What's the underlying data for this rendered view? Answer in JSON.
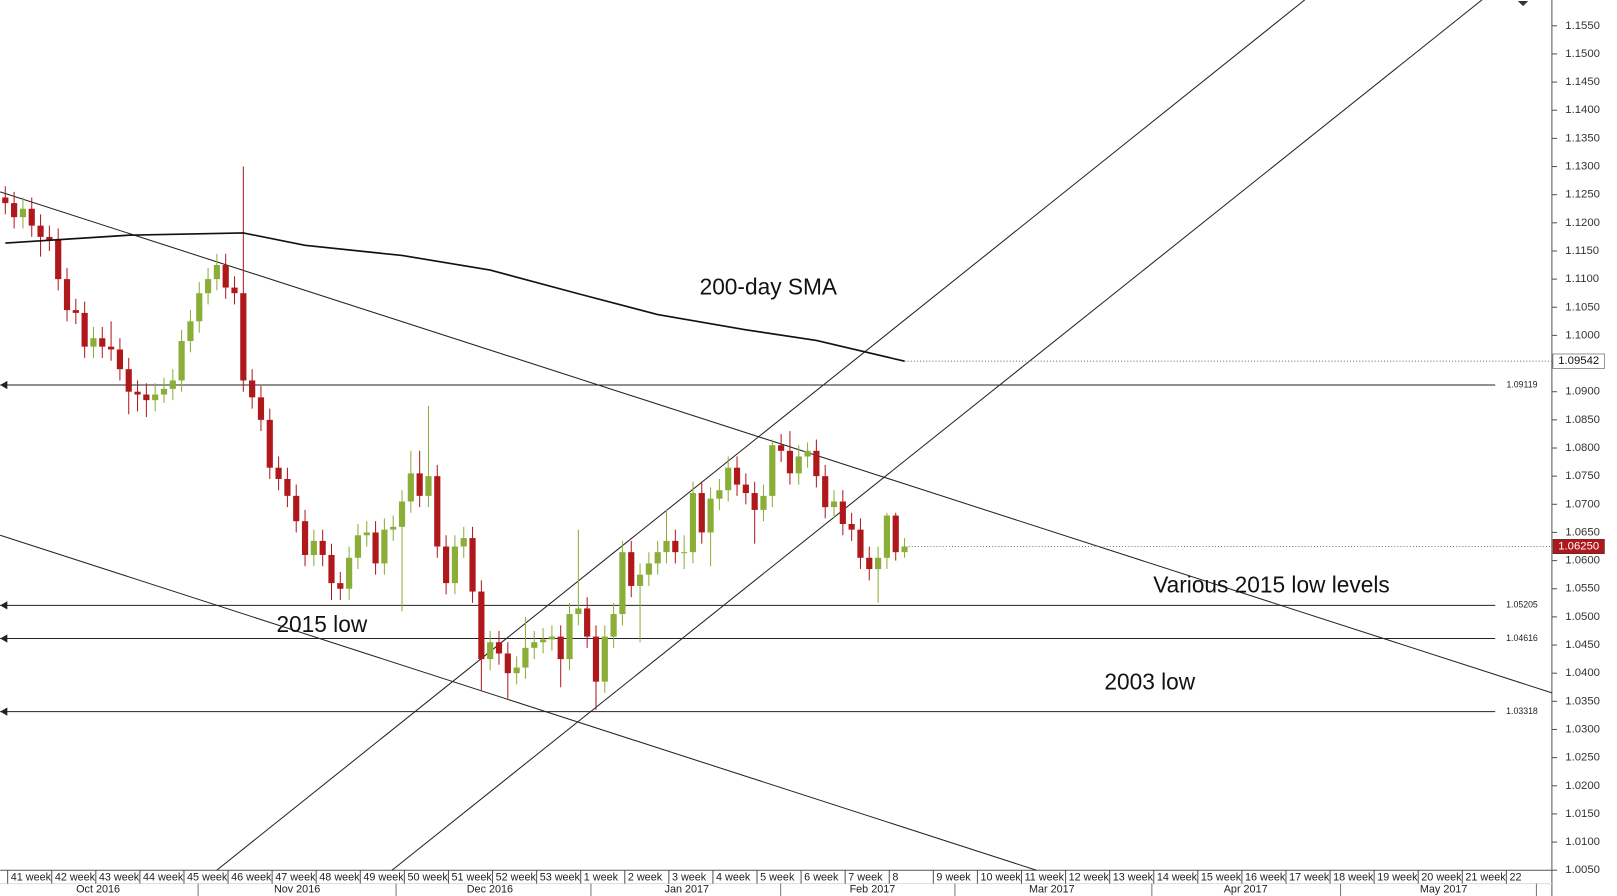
{
  "chart_data": {
    "type": "candlestick",
    "xlim": [
      -0.585,
      175.43
    ],
    "ylim": [
      1.005,
      1.15958
    ],
    "yticks": [
      {
        "value": 1.005,
        "label": "1.0050"
      },
      {
        "value": 1.01,
        "label": "1.0100"
      },
      {
        "value": 1.015,
        "label": "1.0150"
      },
      {
        "value": 1.02,
        "label": "1.0200"
      },
      {
        "value": 1.025,
        "label": "1.0250"
      },
      {
        "value": 1.03,
        "label": "1.0300"
      },
      {
        "value": 1.035,
        "label": "1.0350"
      },
      {
        "value": 1.04,
        "label": "1.0400"
      },
      {
        "value": 1.045,
        "label": "1.0450"
      },
      {
        "value": 1.05,
        "label": "1.0500"
      },
      {
        "value": 1.055,
        "label": "1.0550"
      },
      {
        "value": 1.06,
        "label": "1.0600"
      },
      {
        "value": 1.065,
        "label": "1.0650"
      },
      {
        "value": 1.07,
        "label": "1.0700"
      },
      {
        "value": 1.075,
        "label": "1.0750"
      },
      {
        "value": 1.08,
        "label": "1.0800"
      },
      {
        "value": 1.085,
        "label": "1.0850"
      },
      {
        "value": 1.09,
        "label": "1.0900"
      },
      {
        "value": 1.095,
        "label": "1.0950"
      },
      {
        "value": 1.1,
        "label": "1.1000"
      },
      {
        "value": 1.105,
        "label": "1.1050"
      },
      {
        "value": 1.11,
        "label": "1.1100"
      },
      {
        "value": 1.115,
        "label": "1.1150"
      },
      {
        "value": 1.12,
        "label": "1.1200"
      },
      {
        "value": 1.125,
        "label": "1.1250"
      },
      {
        "value": 1.13,
        "label": "1.1300"
      },
      {
        "value": 1.135,
        "label": "1.1350"
      },
      {
        "value": 1.14,
        "label": "1.1400"
      },
      {
        "value": 1.145,
        "label": "1.1450"
      },
      {
        "value": 1.15,
        "label": "1.1500"
      },
      {
        "value": 1.155,
        "label": "1.1550"
      }
    ],
    "weeks": [
      "41 week",
      "42 week",
      "43 week",
      "44 week",
      "45 week",
      "46 week",
      "47 week",
      "48 week",
      "49 week",
      "50 week",
      "51 week",
      "52 week",
      "53 week",
      "1 week",
      "2 week",
      "3 week",
      "4 week",
      "5 week",
      "6 week",
      "7 week",
      "8",
      "9 week",
      "10 week",
      "11 week",
      "12 week",
      "13 week",
      "14 week",
      "15 week",
      "16 week",
      "17 week",
      "18 week",
      "19 week",
      "20 week",
      "21 week",
      "22"
    ],
    "months": [
      "Oct 2016",
      "Nov 2016",
      "Dec 2016",
      "Jan 2017",
      "Feb 2017",
      "Mar 2017",
      "Apr 2017",
      "May 2017"
    ],
    "up_color": "#8aae38",
    "down_color": "#b0191c",
    "candles": [
      [
        1.1245,
        1.1265,
        1.1215,
        1.1235
      ],
      [
        1.1235,
        1.1255,
        1.119,
        1.121
      ],
      [
        1.121,
        1.1245,
        1.119,
        1.1225
      ],
      [
        1.1225,
        1.1245,
        1.1175,
        1.1195
      ],
      [
        1.1195,
        1.1215,
        1.114,
        1.1175
      ],
      [
        1.1175,
        1.1195,
        1.115,
        1.117
      ],
      [
        1.117,
        1.119,
        1.108,
        1.11
      ],
      [
        1.11,
        1.112,
        1.1025,
        1.1045
      ],
      [
        1.1045,
        1.1065,
        1.102,
        1.104
      ],
      [
        1.104,
        1.106,
        1.096,
        1.098
      ],
      [
        1.098,
        1.1015,
        1.096,
        1.0995
      ],
      [
        1.0995,
        1.1015,
        1.096,
        1.098
      ],
      [
        1.098,
        1.1025,
        1.0955,
        1.0975
      ],
      [
        1.0975,
        1.0995,
        1.092,
        1.094
      ],
      [
        1.094,
        1.096,
        1.086,
        1.09
      ],
      [
        1.09,
        1.092,
        1.0865,
        1.0895
      ],
      [
        1.0895,
        1.0915,
        1.0855,
        1.0885
      ],
      [
        1.0885,
        1.0915,
        1.0865,
        1.0895
      ],
      [
        1.0895,
        1.0925,
        1.088,
        1.0905
      ],
      [
        1.0905,
        1.094,
        1.0885,
        1.092
      ],
      [
        1.092,
        1.101,
        1.09,
        1.099
      ],
      [
        1.099,
        1.1045,
        1.097,
        1.1025
      ],
      [
        1.1025,
        1.1095,
        1.1005,
        1.1075
      ],
      [
        1.1075,
        1.112,
        1.1055,
        1.11
      ],
      [
        1.11,
        1.1145,
        1.108,
        1.1125
      ],
      [
        1.1125,
        1.1145,
        1.1065,
        1.1085
      ],
      [
        1.1085,
        1.1105,
        1.1055,
        1.1075
      ],
      [
        1.1075,
        1.13,
        1.09,
        1.092
      ],
      [
        1.092,
        1.094,
        1.087,
        1.089
      ],
      [
        1.089,
        1.091,
        1.083,
        1.085
      ],
      [
        1.085,
        1.087,
        1.0745,
        1.0765
      ],
      [
        1.0765,
        1.0785,
        1.0725,
        1.0745
      ],
      [
        1.0745,
        1.0765,
        1.0695,
        1.0715
      ],
      [
        1.0715,
        1.0735,
        1.065,
        1.067
      ],
      [
        1.067,
        1.069,
        1.059,
        1.061
      ],
      [
        1.061,
        1.0655,
        1.059,
        1.0635
      ],
      [
        1.0635,
        1.0655,
        1.059,
        1.061
      ],
      [
        1.061,
        1.063,
        1.053,
        1.056
      ],
      [
        1.056,
        1.058,
        1.053,
        1.055
      ],
      [
        1.055,
        1.0625,
        1.053,
        1.0605
      ],
      [
        1.0605,
        1.0665,
        1.0585,
        1.0645
      ],
      [
        1.0645,
        1.067,
        1.0625,
        1.065
      ],
      [
        1.065,
        1.067,
        1.0575,
        1.0595
      ],
      [
        1.0595,
        1.0675,
        1.0575,
        1.0655
      ],
      [
        1.0655,
        1.068,
        1.0635,
        1.066
      ],
      [
        1.066,
        1.0725,
        1.051,
        1.0705
      ],
      [
        1.0705,
        1.0795,
        1.0685,
        1.0755
      ],
      [
        1.0755,
        1.0795,
        1.0695,
        1.0715
      ],
      [
        1.0715,
        1.0875,
        1.0695,
        1.075
      ],
      [
        1.075,
        1.077,
        1.0605,
        1.0625
      ],
      [
        1.0625,
        1.0645,
        1.054,
        1.056
      ],
      [
        1.056,
        1.0645,
        1.054,
        1.0625
      ],
      [
        1.0625,
        1.066,
        1.0605,
        1.064
      ],
      [
        1.064,
        1.066,
        1.0525,
        1.0545
      ],
      [
        1.0545,
        1.0565,
        1.037,
        1.0425
      ],
      [
        1.0425,
        1.0475,
        1.0405,
        1.0455
      ],
      [
        1.0455,
        1.0475,
        1.0415,
        1.0435
      ],
      [
        1.0435,
        1.0455,
        1.0355,
        1.04
      ],
      [
        1.04,
        1.043,
        1.038,
        1.041
      ],
      [
        1.041,
        1.05,
        1.039,
        1.0445
      ],
      [
        1.0445,
        1.0475,
        1.0425,
        1.0455
      ],
      [
        1.0455,
        1.048,
        1.0435,
        1.046
      ],
      [
        1.046,
        1.0485,
        1.044,
        1.0465
      ],
      [
        1.0465,
        1.0485,
        1.0375,
        1.0425
      ],
      [
        1.0425,
        1.0525,
        1.0405,
        1.0505
      ],
      [
        1.0505,
        1.0655,
        1.0485,
        1.0515
      ],
      [
        1.0515,
        1.0535,
        1.0445,
        1.0465
      ],
      [
        1.0465,
        1.0485,
        1.0335,
        1.0385
      ],
      [
        1.0385,
        1.0485,
        1.0365,
        1.0465
      ],
      [
        1.0465,
        1.0525,
        1.0445,
        1.0505
      ],
      [
        1.0505,
        1.0635,
        1.0485,
        1.0615
      ],
      [
        1.0615,
        1.0635,
        1.0535,
        1.0555
      ],
      [
        1.0555,
        1.0595,
        1.0455,
        1.0575
      ],
      [
        1.0575,
        1.0615,
        1.0555,
        1.0595
      ],
      [
        1.0595,
        1.0635,
        1.0575,
        1.0615
      ],
      [
        1.0615,
        1.069,
        1.0595,
        1.0635
      ],
      [
        1.0635,
        1.0655,
        1.0595,
        1.0615
      ],
      [
        1.0615,
        1.0645,
        1.0585,
        1.0615
      ],
      [
        1.0615,
        1.074,
        1.0595,
        1.072
      ],
      [
        1.072,
        1.074,
        1.063,
        1.065
      ],
      [
        1.065,
        1.073,
        1.059,
        1.071
      ],
      [
        1.071,
        1.0745,
        1.069,
        1.0725
      ],
      [
        1.0725,
        1.0785,
        1.0705,
        1.0765
      ],
      [
        1.0765,
        1.0785,
        1.0715,
        1.0735
      ],
      [
        1.0735,
        1.0755,
        1.07,
        1.072
      ],
      [
        1.072,
        1.074,
        1.063,
        1.069
      ],
      [
        1.069,
        1.0735,
        1.067,
        1.0715
      ],
      [
        1.0715,
        1.0815,
        1.0695,
        1.0805
      ],
      [
        1.0805,
        1.0825,
        1.0775,
        1.0795
      ],
      [
        1.0795,
        1.083,
        1.0735,
        1.0755
      ],
      [
        1.0755,
        1.0805,
        1.0735,
        1.0785
      ],
      [
        1.0785,
        1.081,
        1.0765,
        1.0795
      ],
      [
        1.0795,
        1.0815,
        1.073,
        1.075
      ],
      [
        1.075,
        1.077,
        1.0675,
        1.0695
      ],
      [
        1.0695,
        1.0725,
        1.0675,
        1.0705
      ],
      [
        1.0705,
        1.0725,
        1.0645,
        1.0665
      ],
      [
        1.0665,
        1.0685,
        1.0635,
        1.0655
      ],
      [
        1.0655,
        1.0675,
        1.0585,
        1.0605
      ],
      [
        1.0605,
        1.0625,
        1.0565,
        1.0585
      ],
      [
        1.0585,
        1.0625,
        1.0525,
        1.0605
      ],
      [
        1.0605,
        1.0685,
        1.0585,
        1.068
      ],
      [
        1.068,
        1.0685,
        1.06,
        1.0615
      ],
      [
        1.0615,
        1.064,
        1.0605,
        1.0625
      ]
    ],
    "sma": {
      "x": [
        0,
        14,
        27,
        34,
        45,
        55,
        65,
        74,
        84,
        92,
        102
      ],
      "values": [
        1.1164,
        1.1178,
        1.1182,
        1.116,
        1.1142,
        1.1116,
        1.1074,
        1.1037,
        1.101,
        1.0991,
        1.09542
      ],
      "color": "#111111"
    },
    "last_price": {
      "value": 1.0625,
      "label": "1.06250"
    },
    "levels": [
      1.09119,
      1.05205,
      1.04616,
      1.03318
    ],
    "trendlines": [
      {
        "x": [
          -0.585,
          175.43
        ],
        "y": [
          1.1255,
          1.0365
        ]
      },
      {
        "x": [
          -0.585,
          116.96
        ],
        "y": [
          1.0645,
          1.005
        ]
      },
      {
        "x": [
          23.98,
          147.4
        ],
        "y": [
          1.005,
          1.1596
        ]
      },
      {
        "x": [
          43.86,
          167.5
        ],
        "y": [
          1.005,
          1.1596
        ]
      }
    ],
    "annotations": [
      "200-day SMA",
      "Various 2015 low levels",
      "2015 low",
      "2003 low"
    ]
  }
}
